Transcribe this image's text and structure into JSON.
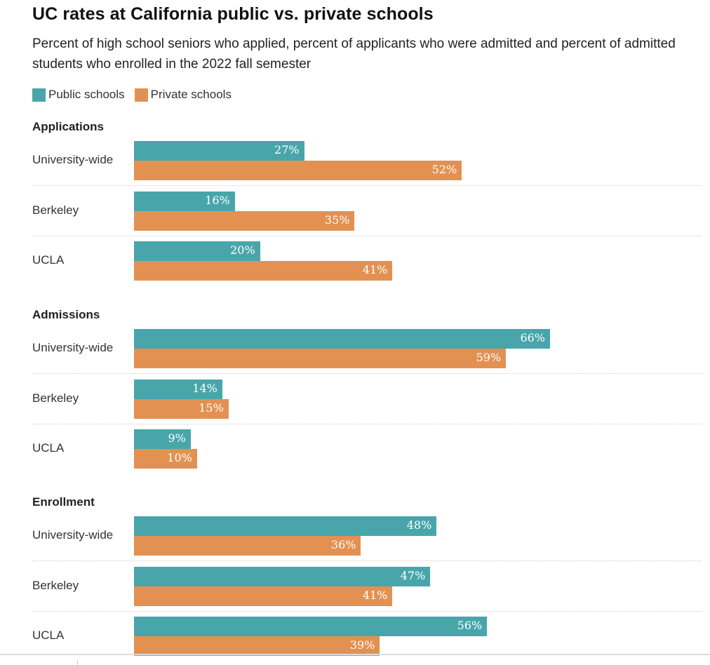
{
  "title": "UC rates at California public vs. private schools",
  "subtitle": "Percent of high school seniors who applied, percent of applicants who were admitted and percent of admitted students who enrolled in the 2022 fall semester",
  "colors": {
    "public": "#48a6ab",
    "private": "#e39152"
  },
  "chart_data": {
    "type": "bar",
    "orientation": "horizontal",
    "title": "UC rates at California public vs. private schools",
    "subtitle": "Percent of high school seniors who applied, percent of applicants who were admitted and percent of admitted students who enrolled in the 2022 fall semester",
    "legend": [
      {
        "name": "Public schools",
        "color": "#48a6ab"
      },
      {
        "name": "Private schools",
        "color": "#e39152"
      }
    ],
    "legend_position": "top-left",
    "xlim": [
      0,
      100
    ],
    "grid": false,
    "unit": "%",
    "groups": [
      {
        "name": "Applications",
        "categories": [
          "University-wide",
          "Berkeley",
          "UCLA"
        ],
        "series": [
          {
            "name": "Public schools",
            "values": [
              27,
              16,
              20
            ]
          },
          {
            "name": "Private schools",
            "values": [
              52,
              35,
              41
            ]
          }
        ]
      },
      {
        "name": "Admissions",
        "categories": [
          "University-wide",
          "Berkeley",
          "UCLA"
        ],
        "series": [
          {
            "name": "Public schools",
            "values": [
              66,
              14,
              9
            ]
          },
          {
            "name": "Private schools",
            "values": [
              59,
              15,
              10
            ]
          }
        ]
      },
      {
        "name": "Enrollment",
        "categories": [
          "University-wide",
          "Berkeley",
          "UCLA"
        ],
        "series": [
          {
            "name": "Public schools",
            "values": [
              48,
              47,
              56
            ]
          },
          {
            "name": "Private schools",
            "values": [
              36,
              41,
              39
            ]
          }
        ]
      }
    ]
  }
}
